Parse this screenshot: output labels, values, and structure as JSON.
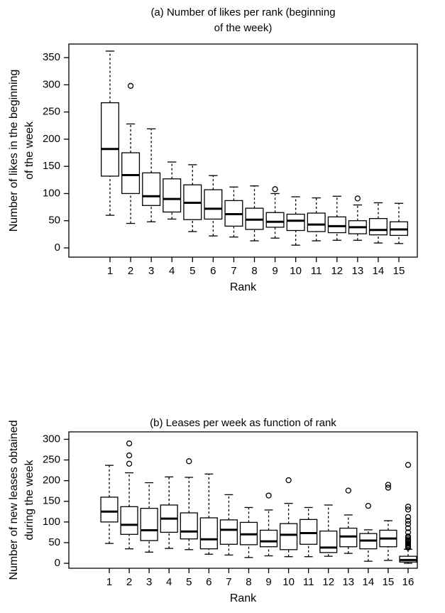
{
  "chart_data": [
    {
      "type": "box",
      "title": [
        "(a) Number of likes per rank (beginning",
        "of the week)"
      ],
      "y_label": [
        "Number of likes in the beginning",
        "of the week"
      ],
      "x_label": "Rank",
      "categories": [
        "1",
        "2",
        "3",
        "4",
        "5",
        "6",
        "7",
        "8",
        "9",
        "10",
        "11",
        "12",
        "13",
        "14",
        "15"
      ],
      "whisker_low": [
        60,
        45,
        48,
        53,
        30,
        22,
        20,
        13,
        18,
        5,
        13,
        14,
        14,
        9,
        8
      ],
      "q1": [
        132,
        100,
        78,
        66,
        52,
        53,
        40,
        34,
        38,
        32,
        30,
        28,
        26,
        24,
        23
      ],
      "median": [
        182,
        134,
        95,
        90,
        83,
        72,
        62,
        52,
        48,
        50,
        43,
        40,
        38,
        33,
        34
      ],
      "q3": [
        267,
        175,
        138,
        127,
        116,
        107,
        87,
        73,
        65,
        62,
        64,
        57,
        50,
        54,
        48
      ],
      "whisker_high": [
        362,
        228,
        219,
        158,
        153,
        133,
        112,
        114,
        100,
        94,
        92,
        95,
        79,
        83,
        82
      ],
      "outliers": [
        [],
        [
          298
        ],
        [],
        [],
        [],
        [],
        [],
        [],
        [
          108
        ],
        [],
        [],
        [],
        [
          91
        ],
        [],
        []
      ],
      "ylim": [
        -17,
        375
      ],
      "yticks": [
        0,
        50,
        100,
        150,
        200,
        250,
        300,
        350
      ]
    },
    {
      "type": "box",
      "title": [
        "(b) Leases per week as function of rank"
      ],
      "y_label": [
        "Number of new leases obtained",
        "during the week"
      ],
      "x_label": "Rank",
      "categories": [
        "1",
        "2",
        "3",
        "4",
        "5",
        "6",
        "7",
        "8",
        "9",
        "10",
        "11",
        "12",
        "13",
        "14",
        "15",
        "16"
      ],
      "whisker_low": [
        48,
        35,
        27,
        36,
        33,
        22,
        20,
        14,
        18,
        16,
        16,
        17,
        24,
        5,
        7,
        0
      ],
      "q1": [
        100,
        70,
        55,
        75,
        59,
        35,
        46,
        45,
        40,
        33,
        46,
        26,
        40,
        35,
        40,
        3
      ],
      "median": [
        125,
        93,
        80,
        108,
        77,
        58,
        81,
        70,
        53,
        69,
        73,
        38,
        65,
        55,
        60,
        8
      ],
      "q3": [
        160,
        137,
        133,
        141,
        122,
        110,
        105,
        99,
        80,
        96,
        106,
        78,
        85,
        72,
        80,
        17
      ],
      "whisker_high": [
        237,
        219,
        195,
        209,
        208,
        216,
        166,
        135,
        129,
        145,
        135,
        141,
        117,
        81,
        103,
        34
      ],
      "outliers": [
        [],
        [
          241,
          261,
          290
        ],
        [],
        [],
        [
          247
        ],
        [],
        [],
        [],
        [
          164
        ],
        [
          201
        ],
        [],
        [],
        [
          176
        ],
        [
          139
        ],
        [
          183,
          190
        ],
        [
          38,
          40,
          42,
          45,
          48,
          52,
          55,
          58,
          62,
          65,
          75,
          85,
          95,
          103,
          112,
          130,
          137,
          238
        ]
      ],
      "ylim": [
        -12,
        318
      ],
      "yticks": [
        0,
        50,
        100,
        150,
        200,
        250,
        300
      ]
    }
  ]
}
